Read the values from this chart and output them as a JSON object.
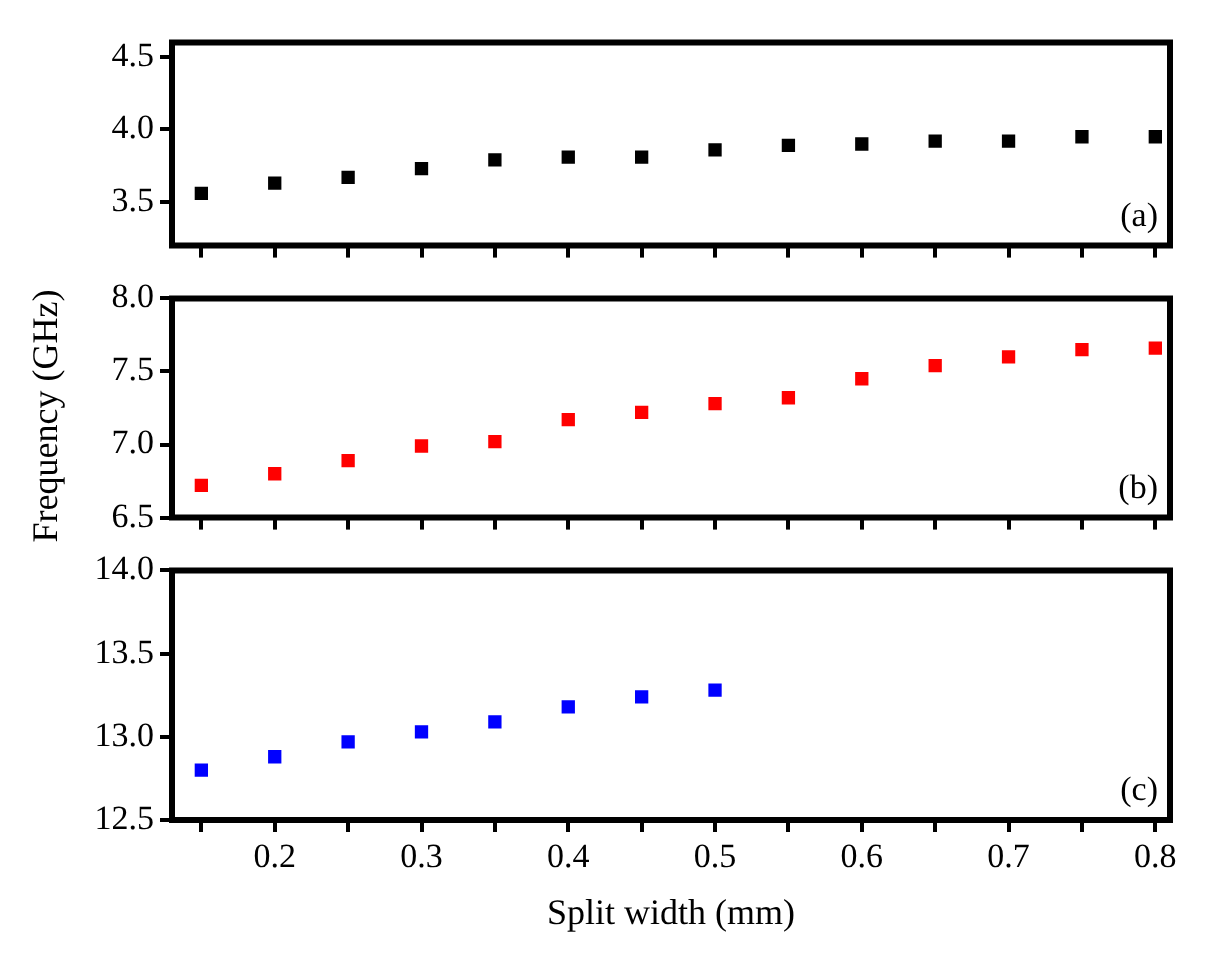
{
  "chart_data": [
    {
      "type": "scatter",
      "x": [
        0.15,
        0.2,
        0.25,
        0.3,
        0.35,
        0.4,
        0.45,
        0.5,
        0.55,
        0.6,
        0.65,
        0.7,
        0.75,
        0.8
      ],
      "values": [
        3.56,
        3.63,
        3.67,
        3.73,
        3.79,
        3.81,
        3.81,
        3.86,
        3.89,
        3.9,
        3.92,
        3.92,
        3.95,
        3.95
      ],
      "color": "#000000",
      "marker": "square",
      "xlim": [
        0.13,
        0.81
      ],
      "xticks": [
        {
          "value": 0.15,
          "label": null
        },
        {
          "value": 0.2,
          "label": null
        },
        {
          "value": 0.25,
          "label": null
        },
        {
          "value": 0.3,
          "label": null
        },
        {
          "value": 0.35,
          "label": null
        },
        {
          "value": 0.4,
          "label": null
        },
        {
          "value": 0.45,
          "label": null
        },
        {
          "value": 0.5,
          "label": null
        },
        {
          "value": 0.55,
          "label": null
        },
        {
          "value": 0.6,
          "label": null
        },
        {
          "value": 0.65,
          "label": null
        },
        {
          "value": 0.7,
          "label": null
        },
        {
          "value": 0.75,
          "label": null
        },
        {
          "value": 0.8,
          "label": null
        }
      ],
      "ylim": [
        3.2,
        4.6
      ],
      "yticks": [
        3.5,
        {
          "value": 4,
          "label": "4.0"
        },
        4.5
      ],
      "tick_labels": "y",
      "grid": false,
      "legend": false,
      "annotations": [
        "(a)"
      ]
    },
    {
      "type": "scatter",
      "x": [
        0.15,
        0.2,
        0.25,
        0.3,
        0.35,
        0.4,
        0.45,
        0.5,
        0.55,
        0.6,
        0.65,
        0.7,
        0.75,
        0.8
      ],
      "values": [
        6.72,
        6.8,
        6.89,
        6.99,
        7.02,
        7.17,
        7.22,
        7.28,
        7.32,
        7.45,
        7.54,
        7.6,
        7.65,
        7.66
      ],
      "color": "#ff0000",
      "marker": "square",
      "xlim": [
        0.13,
        0.81
      ],
      "xticks": [
        {
          "value": 0.15,
          "label": null
        },
        {
          "value": 0.2,
          "label": null
        },
        {
          "value": 0.25,
          "label": null
        },
        {
          "value": 0.3,
          "label": null
        },
        {
          "value": 0.35,
          "label": null
        },
        {
          "value": 0.4,
          "label": null
        },
        {
          "value": 0.45,
          "label": null
        },
        {
          "value": 0.5,
          "label": null
        },
        {
          "value": 0.55,
          "label": null
        },
        {
          "value": 0.6,
          "label": null
        },
        {
          "value": 0.65,
          "label": null
        },
        {
          "value": 0.7,
          "label": null
        },
        {
          "value": 0.75,
          "label": null
        },
        {
          "value": 0.8,
          "label": null
        }
      ],
      "ylim": [
        6.5,
        8.0
      ],
      "yticks": [
        6.5,
        {
          "value": 7,
          "label": "7.0"
        },
        7.5,
        {
          "value": 8,
          "label": "8.0"
        }
      ],
      "tick_labels": "y",
      "grid": false,
      "legend": false,
      "ylabel": "Frequency (GHz)",
      "annotations": [
        "(b)"
      ]
    },
    {
      "type": "scatter",
      "x": [
        0.15,
        0.2,
        0.25,
        0.3,
        0.35,
        0.4,
        0.45,
        0.5
      ],
      "values": [
        12.8,
        12.88,
        12.97,
        13.03,
        13.09,
        13.18,
        13.24,
        13.28
      ],
      "color": "#0000ff",
      "marker": "square",
      "xlim": [
        0.13,
        0.81
      ],
      "xticks": [
        {
          "value": 0.15,
          "label": null
        },
        0.2,
        {
          "value": 0.25,
          "label": null
        },
        0.3,
        {
          "value": 0.35,
          "label": null
        },
        0.4,
        {
          "value": 0.45,
          "label": null
        },
        0.5,
        {
          "value": 0.55,
          "label": null
        },
        0.6,
        {
          "value": 0.65,
          "label": null
        },
        0.7,
        {
          "value": 0.75,
          "label": null
        },
        0.8
      ],
      "ylim": [
        12.5,
        14.0
      ],
      "yticks": [
        12.5,
        {
          "value": 13,
          "label": "13.0"
        },
        13.5,
        {
          "value": 14,
          "label": "14.0"
        }
      ],
      "grid": false,
      "legend": false,
      "xlabel": "Split width (mm)",
      "annotations": [
        "(c)"
      ]
    }
  ]
}
